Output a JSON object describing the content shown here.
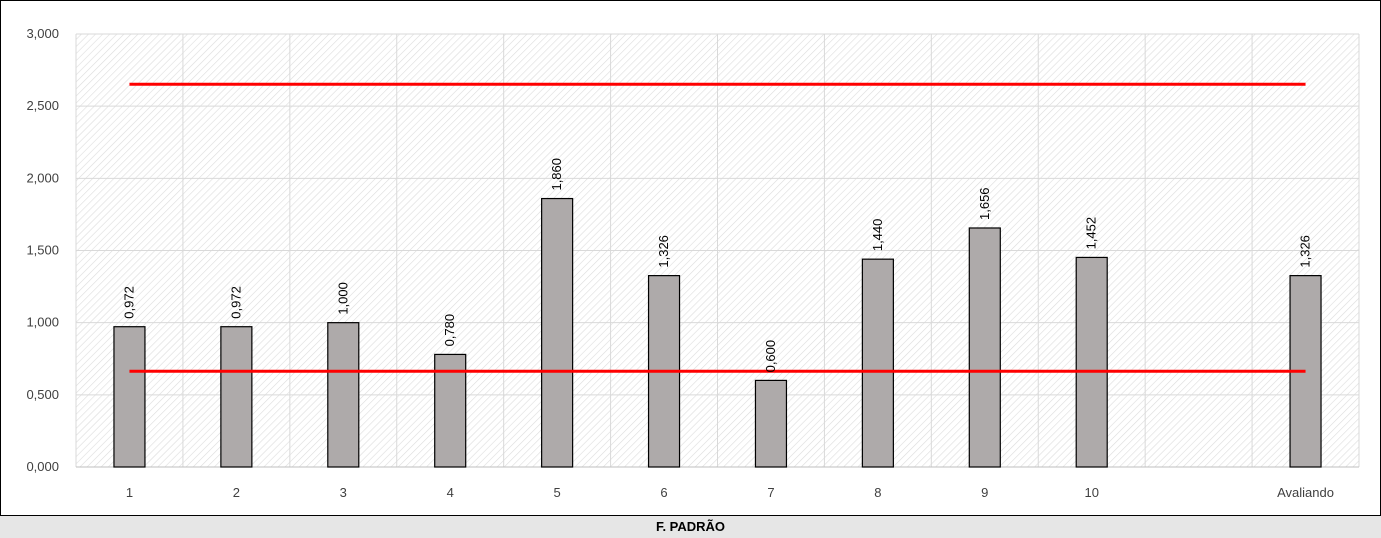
{
  "chart_data": {
    "type": "bar",
    "title": "",
    "xlabel": "F. PADRÃO",
    "ylabel": "",
    "categories": [
      "1",
      "2",
      "3",
      "4",
      "5",
      "6",
      "7",
      "8",
      "9",
      "10",
      "",
      "Avaliando"
    ],
    "series": [
      {
        "values": [
          0.972,
          0.972,
          1.0,
          0.78,
          1.86,
          1.326,
          0.6,
          1.44,
          1.656,
          1.452,
          null,
          1.326
        ],
        "data_labels": [
          "0,972",
          "0,972",
          "1,000",
          "0,780",
          "1,860",
          "1,326",
          "0,600",
          "1,440",
          "1,656",
          "1,452",
          "",
          "1,326"
        ],
        "color": "#aeaaaa"
      }
    ],
    "reference_lines": [
      {
        "value": 2.652,
        "color": "#ff0000"
      },
      {
        "value": 0.663,
        "color": "#ff0000"
      }
    ],
    "ylim": [
      0,
      3
    ],
    "yticks": [
      0,
      0.5,
      1,
      1.5,
      2,
      2.5,
      3
    ],
    "ytick_labels": [
      "0,000",
      "0,500",
      "1,000",
      "1,500",
      "2,000",
      "2,500",
      "3,000"
    ],
    "grid": true,
    "legend": "none",
    "plot_background": "diagonal-hatch"
  },
  "footer": {
    "label": "F. PADRÃO",
    "background": "#e6e6e6"
  },
  "colors": {
    "bar_fill": "#aeaaaa",
    "bar_stroke": "#000000",
    "reference_line": "#ff0000",
    "gridline": "#d9d9d9"
  }
}
